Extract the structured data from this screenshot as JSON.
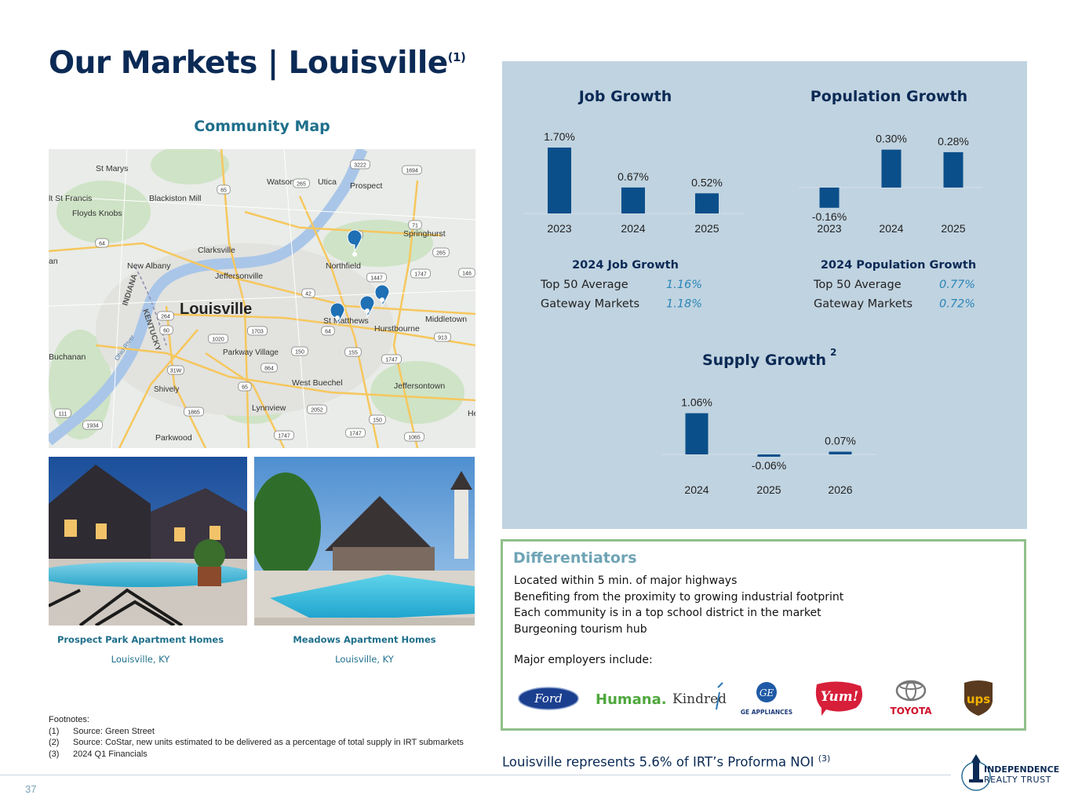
{
  "header": {
    "title": "Our Markets | Louisville",
    "title_sup": "(1)"
  },
  "map": {
    "title": "Community Map",
    "center_label": "Louisville",
    "places": [
      "St Marys",
      "lt St Francis",
      "Floyds Knobs",
      "Blackiston Mill",
      "Watson",
      "Utica",
      "Prospect",
      "Springhurst",
      "Clarksville",
      "Jeffersonville",
      "New Albany",
      "Northfield",
      "Middletown",
      "Hurstbourne",
      "St Matthews",
      "Buchanan",
      "Shively",
      "Parkway Village",
      "West Buechel",
      "Jeffersontown",
      "Lynnview",
      "Parkwood",
      "an",
      "He",
      "Ohio River",
      "INDIANA",
      "KENTUCKY"
    ],
    "shields": [
      "65",
      "265",
      "3222",
      "1694",
      "42",
      "71",
      "64",
      "265",
      "1447",
      "1747",
      "146",
      "42",
      "64",
      "264",
      "60",
      "1020",
      "1703",
      "150",
      "155",
      "1747",
      "913",
      "31W",
      "864",
      "65",
      "1865",
      "2052",
      "150",
      "1747",
      "1065",
      "111",
      "1934",
      "1747"
    ]
  },
  "properties": [
    {
      "name": "Prospect Park Apartment Homes",
      "location": "Louisville, KY"
    },
    {
      "name": "Meadows Apartment Homes",
      "location": "Louisville, KY"
    }
  ],
  "footnotes": {
    "label": "Footnotes:",
    "items": [
      {
        "num": "(1)",
        "text": "Source: Green Street"
      },
      {
        "num": "(2)",
        "text": "Source: CoStar, new units estimated to be delivered as a percentage of total supply in IRT submarkets"
      },
      {
        "num": "(3)",
        "text": "2024 Q1 Financials"
      }
    ]
  },
  "chart_data": [
    {
      "type": "bar",
      "title": "Job Growth",
      "categories": [
        "2023",
        "2024",
        "2025"
      ],
      "values": [
        1.7,
        0.67,
        0.52
      ],
      "labels": [
        "1.70%",
        "0.67%",
        "0.52%"
      ],
      "color": "#0b4f8a"
    },
    {
      "type": "bar",
      "title": "Population Growth",
      "categories": [
        "2023",
        "2024",
        "2025"
      ],
      "values": [
        -0.16,
        0.3,
        0.28
      ],
      "labels": [
        "-0.16%",
        "0.30%",
        "0.28%"
      ],
      "color": "#0b4f8a"
    },
    {
      "type": "bar",
      "title": "Supply Growth",
      "title_sup": "2",
      "categories": [
        "2024",
        "2025",
        "2026"
      ],
      "values": [
        1.06,
        -0.06,
        0.07
      ],
      "labels": [
        "1.06%",
        "-0.06%",
        "0.07%"
      ],
      "color": "#0b4f8a"
    }
  ],
  "comparisons": [
    {
      "title": "2024 Job Growth",
      "rows": [
        {
          "label": "Top 50 Average",
          "value": "1.16%"
        },
        {
          "label": "Gateway Markets",
          "value": "1.18%"
        }
      ]
    },
    {
      "title": "2024 Population Growth",
      "rows": [
        {
          "label": "Top 50 Average",
          "value": "0.77%"
        },
        {
          "label": "Gateway Markets",
          "value": "0.72%"
        }
      ]
    }
  ],
  "differentiators": {
    "title": "Differentiators",
    "items": [
      "Located within 5 min. of major highways",
      "Benefiting from the proximity to growing industrial footprint",
      "Each community is in a top school district in the market",
      "Burgeoning tourism hub"
    ],
    "employers_label": "Major employers include:",
    "employers": [
      "Ford",
      "Humana.",
      "Kindred",
      "GE APPLIANCES",
      "Yum!",
      "TOYOTA",
      "ups"
    ]
  },
  "bottom_note": {
    "text": "Louisville represents 5.6% of IRT’s Proforma NOI ",
    "sup": "(3)"
  },
  "footer": {
    "page_number": "37",
    "brand_line1": "INDEPENDENCE",
    "brand_line2": "REALTY TRUST"
  },
  "colors": {
    "navy": "#0b2a55",
    "teal": "#1f6f8b",
    "panel": "#c0d3e0",
    "bar": "#0b4f8a",
    "green_border": "#8fc08a",
    "accent_value": "#2a86b8"
  }
}
